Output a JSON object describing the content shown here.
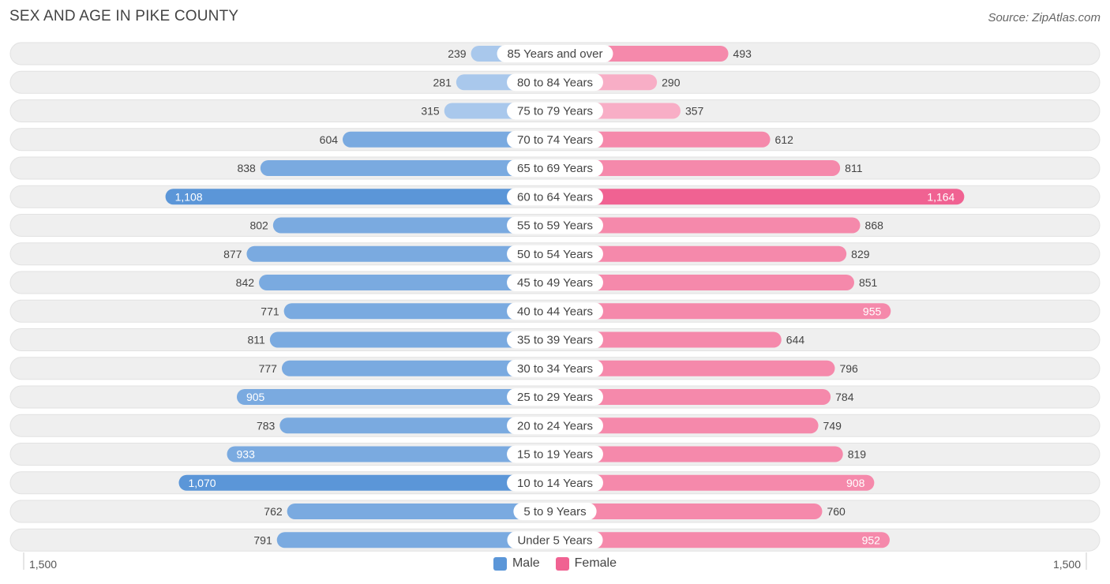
{
  "title": "SEX AND AGE IN PIKE COUNTY",
  "source": "Source: ZipAtlas.com",
  "colors": {
    "male": "#7aaae0",
    "male_strong": "#5b96d8",
    "male_light": "#a9c8ec",
    "female": "#f589ab",
    "female_strong": "#f06292",
    "female_light": "#f8aec6",
    "row_bg": "#efefef"
  },
  "chart_data": {
    "type": "bar",
    "orientation": "horizontal-diverging",
    "categories": [
      "85 Years and over",
      "80 to 84 Years",
      "75 to 79 Years",
      "70 to 74 Years",
      "65 to 69 Years",
      "60 to 64 Years",
      "55 to 59 Years",
      "50 to 54 Years",
      "45 to 49 Years",
      "40 to 44 Years",
      "35 to 39 Years",
      "30 to 34 Years",
      "25 to 29 Years",
      "20 to 24 Years",
      "15 to 19 Years",
      "10 to 14 Years",
      "5 to 9 Years",
      "Under 5 Years"
    ],
    "series": [
      {
        "name": "Male",
        "values": [
          239,
          281,
          315,
          604,
          838,
          1108,
          802,
          877,
          842,
          771,
          811,
          777,
          905,
          783,
          933,
          1070,
          762,
          791
        ],
        "labels": [
          "239",
          "281",
          "315",
          "604",
          "838",
          "1,108",
          "802",
          "877",
          "842",
          "771",
          "811",
          "777",
          "905",
          "783",
          "933",
          "1,070",
          "762",
          "791"
        ]
      },
      {
        "name": "Female",
        "values": [
          493,
          290,
          357,
          612,
          811,
          1164,
          868,
          829,
          851,
          955,
          644,
          796,
          784,
          749,
          819,
          908,
          760,
          952
        ],
        "labels": [
          "493",
          "290",
          "357",
          "612",
          "811",
          "1,164",
          "868",
          "829",
          "851",
          "955",
          "644",
          "796",
          "784",
          "749",
          "819",
          "908",
          "760",
          "952"
        ]
      }
    ],
    "xlim": [
      -1500,
      1500
    ],
    "axis_left_label": "1,500",
    "axis_right_label": "1,500",
    "legend_position": "bottom-center"
  }
}
